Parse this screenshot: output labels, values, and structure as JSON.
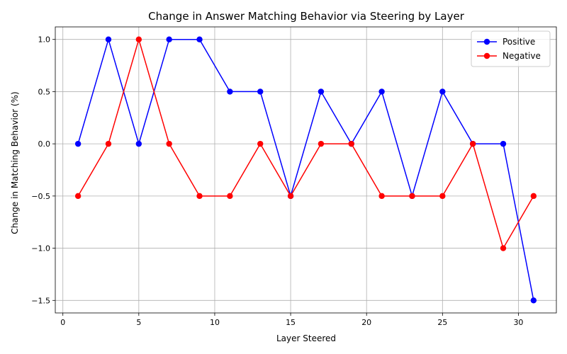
{
  "chart_data": {
    "type": "line",
    "title": "Change in Answer Matching Behavior via Steering by Layer",
    "xlabel": "Layer Steered",
    "ylabel": "Change in Matching Behavior (%)",
    "xlim": [
      -0.5,
      32.5
    ],
    "ylim": [
      -1.62,
      1.12
    ],
    "xticks": [
      0,
      5,
      10,
      15,
      20,
      25,
      30
    ],
    "yticks": [
      -1.5,
      -1.0,
      -0.5,
      0.0,
      0.5,
      1.0
    ],
    "ytick_labels": [
      "−1.5",
      "−1.0",
      "−0.5",
      "0.0",
      "0.5",
      "1.0"
    ],
    "grid": true,
    "legend_position": "top-right",
    "x": [
      1,
      3,
      5,
      7,
      9,
      11,
      13,
      15,
      17,
      19,
      21,
      23,
      25,
      27,
      29,
      31
    ],
    "series": [
      {
        "name": "Positive",
        "color": "#0000ff",
        "values": [
          0,
          1,
          0,
          1,
          1,
          0.5,
          0.5,
          -0.5,
          0.5,
          0,
          0.5,
          -0.5,
          0.5,
          0,
          0,
          -1.5
        ]
      },
      {
        "name": "Negative",
        "color": "#ff0000",
        "values": [
          -0.5,
          0,
          1,
          0,
          -0.5,
          -0.5,
          0,
          -0.5,
          0,
          0,
          -0.5,
          -0.5,
          -0.5,
          0,
          -1,
          -0.5
        ]
      }
    ]
  }
}
